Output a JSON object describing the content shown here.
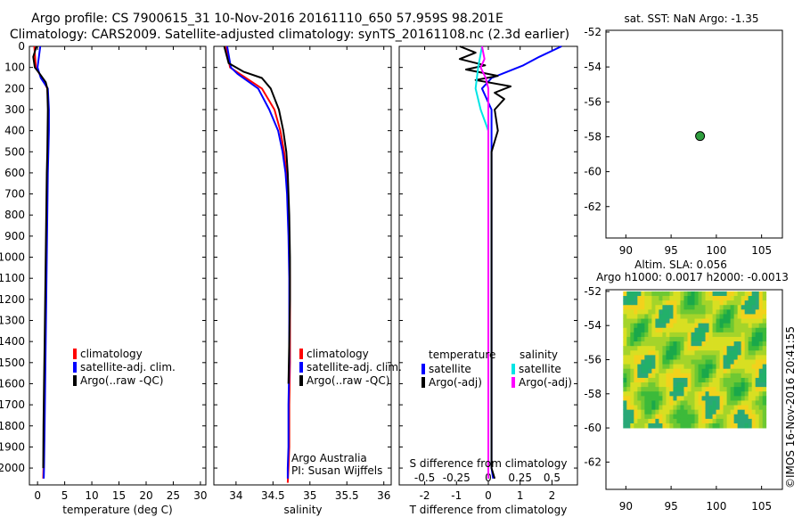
{
  "title": {
    "line1": "Argo profile: CS 7900615_31 10-Nov-2016 20161110_650 57.959S 98.201E",
    "line2": "Climatology: CARS2009. Satellite-adjusted climatology: synTS_20161108.nc (2.3d earlier)"
  },
  "depth_ticks": [
    0,
    100,
    200,
    300,
    400,
    500,
    600,
    700,
    800,
    900,
    1000,
    1100,
    1200,
    1300,
    1400,
    1500,
    1600,
    1700,
    1800,
    1900,
    2000
  ],
  "legend_labels": [
    "climatology",
    "satellite-adj. clim.",
    "Argo(..raw -QC)"
  ],
  "diff_legend": {
    "temperature_header": "temperature",
    "salinity_header": "salinity",
    "satellite": "satellite",
    "argo_adj": "Argo(-adj)"
  },
  "annotations": {
    "institution": "Argo Australia",
    "pi": "PI: Susan Wijffels",
    "credit": "©IMOS 16-Nov-2016 20:41:55"
  },
  "map_sst": {
    "title": "sat. SST: NaN Argo: -1.35",
    "yticks": [
      -52,
      -54,
      -56,
      -58,
      -60,
      -62
    ],
    "xticks": [
      90,
      95,
      100,
      105
    ],
    "float_lon": 98.2,
    "float_lat": -57.96,
    "marker_color": "#2e9e3e"
  },
  "map_sla": {
    "title1": "Altim. SLA: 0.056",
    "title2": "Argo h1000: 0.0017 h2000: -0.0013",
    "yticks": [
      -52,
      -54,
      -56,
      -58,
      -60,
      -62
    ],
    "xticks": [
      90,
      95,
      100,
      105
    ],
    "lon_range": [
      89.7,
      105.5
    ],
    "lat_range": [
      -60,
      -52
    ]
  },
  "colors": {
    "climatology": "#ff0000",
    "satellite": "#0000ff",
    "argo": "#000000",
    "sat_salinity": "#00e5e5",
    "argo_salinity": "#ff00ff"
  },
  "chart_data": [
    {
      "type": "line",
      "xlabel": "temperature (deg C)",
      "ylabel": "",
      "xlim": [
        -1.5,
        31
      ],
      "ylim": [
        2080,
        0
      ],
      "xticks": [
        0,
        5,
        10,
        15,
        20,
        25,
        30
      ],
      "series": [
        {
          "name": "climatology",
          "x": [
            -0.6,
            -0.3,
            0.8,
            1.8,
            2.0,
            2.0,
            1.9,
            1.8,
            1.7,
            1.6,
            1.5,
            1.4,
            1.3,
            1.2,
            1.1,
            1.05
          ],
          "y": [
            0,
            100,
            150,
            200,
            300,
            400,
            500,
            600,
            800,
            1000,
            1200,
            1400,
            1600,
            1800,
            2000,
            2050
          ]
        },
        {
          "name": "satellite-adj. clim.",
          "x": [
            0.5,
            0.0,
            0.6,
            1.9,
            2.1,
            2.1,
            2.0,
            1.9,
            1.8,
            1.7,
            1.6,
            1.5,
            1.4,
            1.3,
            1.2,
            1.15
          ],
          "y": [
            0,
            100,
            150,
            200,
            300,
            400,
            500,
            600,
            800,
            1000,
            1200,
            1400,
            1600,
            1800,
            2000,
            2050
          ]
        },
        {
          "name": "Argo(..raw -QC)",
          "x": [
            -0.2,
            -0.8,
            -0.5,
            0.4,
            1.5,
            1.8,
            1.9,
            1.85,
            1.8,
            1.7,
            1.6,
            1.5,
            1.4,
            1.3,
            1.2,
            1.1,
            1.05
          ],
          "y": [
            0,
            50,
            100,
            130,
            170,
            200,
            300,
            400,
            500,
            600,
            800,
            1000,
            1200,
            1400,
            1600,
            1800,
            2000
          ]
        }
      ]
    },
    {
      "type": "line",
      "xlabel": "salinity",
      "ylabel": "",
      "xlim": [
        33.7,
        36.1
      ],
      "ylim": [
        2080,
        0
      ],
      "xticks": [
        34,
        34.5,
        35,
        35.5,
        36
      ],
      "series": [
        {
          "name": "climatology",
          "x": [
            33.86,
            33.92,
            34.05,
            34.35,
            34.52,
            34.6,
            34.65,
            34.68,
            34.7,
            34.72,
            34.73,
            34.73,
            34.73,
            34.72,
            34.72,
            34.71,
            34.7
          ],
          "y": [
            0,
            100,
            130,
            200,
            300,
            400,
            500,
            600,
            700,
            900,
            1100,
            1300,
            1500,
            1700,
            1900,
            2000,
            2070
          ]
        },
        {
          "name": "satellite-adj. clim.",
          "x": [
            33.88,
            33.93,
            34.02,
            34.3,
            34.45,
            34.57,
            34.63,
            34.67,
            34.69,
            34.71,
            34.72,
            34.72,
            34.72,
            34.71,
            34.71,
            34.7,
            34.7
          ],
          "y": [
            0,
            100,
            130,
            200,
            300,
            400,
            500,
            600,
            700,
            900,
            1100,
            1300,
            1500,
            1700,
            1900,
            2000,
            2050
          ]
        },
        {
          "name": "Argo(..raw -QC)",
          "x": [
            33.84,
            33.9,
            34.1,
            34.35,
            34.47,
            34.58,
            34.64,
            34.68,
            34.7,
            34.72,
            34.73,
            34.73,
            34.72,
            34.71
          ],
          "y": [
            0,
            80,
            120,
            150,
            200,
            300,
            400,
            500,
            600,
            800,
            1000,
            1200,
            1400,
            1600
          ]
        }
      ]
    },
    {
      "type": "line",
      "xlabel": "T difference from climatology",
      "x2label": "S difference from climatology",
      "ylabel": "",
      "xlim": [
        -2.8,
        2.8
      ],
      "ylim": [
        2080,
        0
      ],
      "xticks": [
        -2,
        -1,
        0,
        1,
        2
      ],
      "x2lim": [
        -0.7,
        0.7
      ],
      "x2ticks": [
        -0.5,
        -0.25,
        0,
        0.25,
        0.5
      ],
      "series": [
        {
          "name": "temperature satellite",
          "x": [
            2.3,
            1.6,
            1.1,
            0.6,
            0.1,
            -0.2,
            0.1,
            0.1,
            0.1,
            0.1,
            0.1,
            0.1,
            0.1,
            0.1,
            0.1,
            0.1,
            0.15
          ],
          "y": [
            0,
            50,
            90,
            120,
            150,
            200,
            300,
            400,
            600,
            800,
            1000,
            1200,
            1400,
            1600,
            1800,
            2000,
            2050
          ]
        },
        {
          "name": "temperature Argo(-adj)",
          "x": [
            -0.9,
            -0.4,
            -0.9,
            -0.1,
            -0.7,
            0.3,
            -0.4,
            0.7,
            0.2,
            0.5,
            0.2,
            0.3,
            0.1,
            0.1,
            0.1,
            0.1,
            0.1,
            0.1,
            0.1,
            0.1,
            0.1,
            0.2
          ],
          "y": [
            0,
            30,
            60,
            90,
            110,
            140,
            160,
            190,
            220,
            250,
            300,
            400,
            500,
            600,
            800,
            1000,
            1200,
            1400,
            1600,
            1800,
            2000,
            2050
          ]
        },
        {
          "name": "salinity satellite",
          "x": [
            -0.05,
            -0.08,
            -0.1,
            -0.06,
            0.0,
            0.0,
            0.0,
            0.0,
            0.0,
            0.0,
            0.0,
            0.0,
            0.0,
            0.0,
            0.0,
            0.0
          ],
          "y": [
            0,
            100,
            200,
            300,
            400,
            500,
            700,
            900,
            1100,
            1300,
            1500,
            1700,
            1800,
            1900,
            2000,
            2050
          ]
        },
        {
          "name": "salinity Argo(-adj)",
          "x": [
            -0.05,
            -0.03,
            -0.06,
            -0.02,
            0.0,
            0.0,
            0.0,
            0.0,
            0.0,
            0.0,
            0.0,
            0.0,
            0.0
          ],
          "y": [
            0,
            60,
            100,
            150,
            200,
            300,
            500,
            800,
            1100,
            1400,
            1700,
            2000,
            2050
          ]
        }
      ]
    }
  ]
}
